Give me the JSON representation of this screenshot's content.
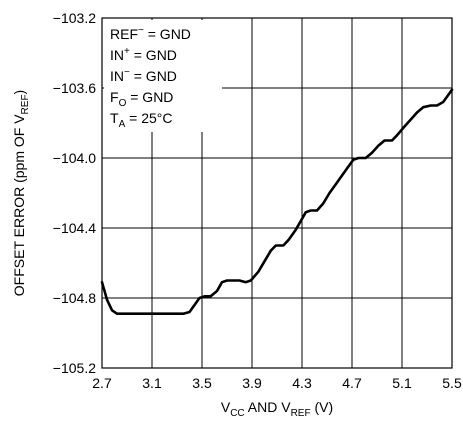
{
  "chart_data": {
    "type": "line",
    "title": "",
    "xlabel": {
      "main": "V",
      "sub1": "CC",
      "mid": " AND V",
      "sub2": "REF",
      "tail": " (V)"
    },
    "ylabel": {
      "main": "OFFSET ERROR (ppm OF V",
      "sub": "REF",
      "tail": ")"
    },
    "xlim": [
      2.7,
      5.5
    ],
    "ylim": [
      -105.2,
      -103.2
    ],
    "x_ticks": [
      "2.7",
      "3.1",
      "3.5",
      "3.9",
      "4.3",
      "4.7",
      "5.1",
      "5.5"
    ],
    "y_ticks": [
      "-103.2",
      "-103.6",
      "-104.0",
      "-104.4",
      "-104.8",
      "-105.2"
    ],
    "grid": true,
    "annotations": [
      {
        "pre": "REF",
        "sup": "−",
        "post": " = GND"
      },
      {
        "pre": "IN",
        "sup": "+",
        "post": " = GND"
      },
      {
        "pre": "IN",
        "sup": "−",
        "post": " = GND"
      },
      {
        "pre": "F",
        "sub": "O",
        "post": " = GND"
      },
      {
        "pre": "T",
        "sub": "A",
        "post": " = 25°C"
      }
    ],
    "series": [
      {
        "color": "#000000",
        "points": [
          [
            2.7,
            -104.71
          ],
          [
            2.74,
            -104.81
          ],
          [
            2.78,
            -104.87
          ],
          [
            2.82,
            -104.89
          ],
          [
            2.86,
            -104.89
          ],
          [
            2.95,
            -104.89
          ],
          [
            3.1,
            -104.89
          ],
          [
            3.25,
            -104.89
          ],
          [
            3.35,
            -104.89
          ],
          [
            3.4,
            -104.88
          ],
          [
            3.44,
            -104.84
          ],
          [
            3.48,
            -104.8
          ],
          [
            3.52,
            -104.79
          ],
          [
            3.57,
            -104.79
          ],
          [
            3.62,
            -104.76
          ],
          [
            3.66,
            -104.71
          ],
          [
            3.7,
            -104.7
          ],
          [
            3.8,
            -104.7
          ],
          [
            3.85,
            -104.71
          ],
          [
            3.89,
            -104.7
          ],
          [
            3.95,
            -104.65
          ],
          [
            4.0,
            -104.59
          ],
          [
            4.05,
            -104.53
          ],
          [
            4.09,
            -104.5
          ],
          [
            4.15,
            -104.5
          ],
          [
            4.19,
            -104.47
          ],
          [
            4.25,
            -104.41
          ],
          [
            4.29,
            -104.36
          ],
          [
            4.33,
            -104.31
          ],
          [
            4.37,
            -104.3
          ],
          [
            4.42,
            -104.3
          ],
          [
            4.47,
            -104.26
          ],
          [
            4.52,
            -104.2
          ],
          [
            4.57,
            -104.15
          ],
          [
            4.62,
            -104.1
          ],
          [
            4.66,
            -104.06
          ],
          [
            4.71,
            -104.01
          ],
          [
            4.75,
            -104.0
          ],
          [
            4.81,
            -104.0
          ],
          [
            4.86,
            -103.97
          ],
          [
            4.91,
            -103.93
          ],
          [
            4.96,
            -103.9
          ],
          [
            5.02,
            -103.9
          ],
          [
            5.06,
            -103.87
          ],
          [
            5.12,
            -103.82
          ],
          [
            5.17,
            -103.78
          ],
          [
            5.22,
            -103.74
          ],
          [
            5.27,
            -103.71
          ],
          [
            5.33,
            -103.7
          ],
          [
            5.38,
            -103.7
          ],
          [
            5.43,
            -103.68
          ],
          [
            5.48,
            -103.63
          ],
          [
            5.5,
            -103.61
          ]
        ]
      }
    ]
  }
}
